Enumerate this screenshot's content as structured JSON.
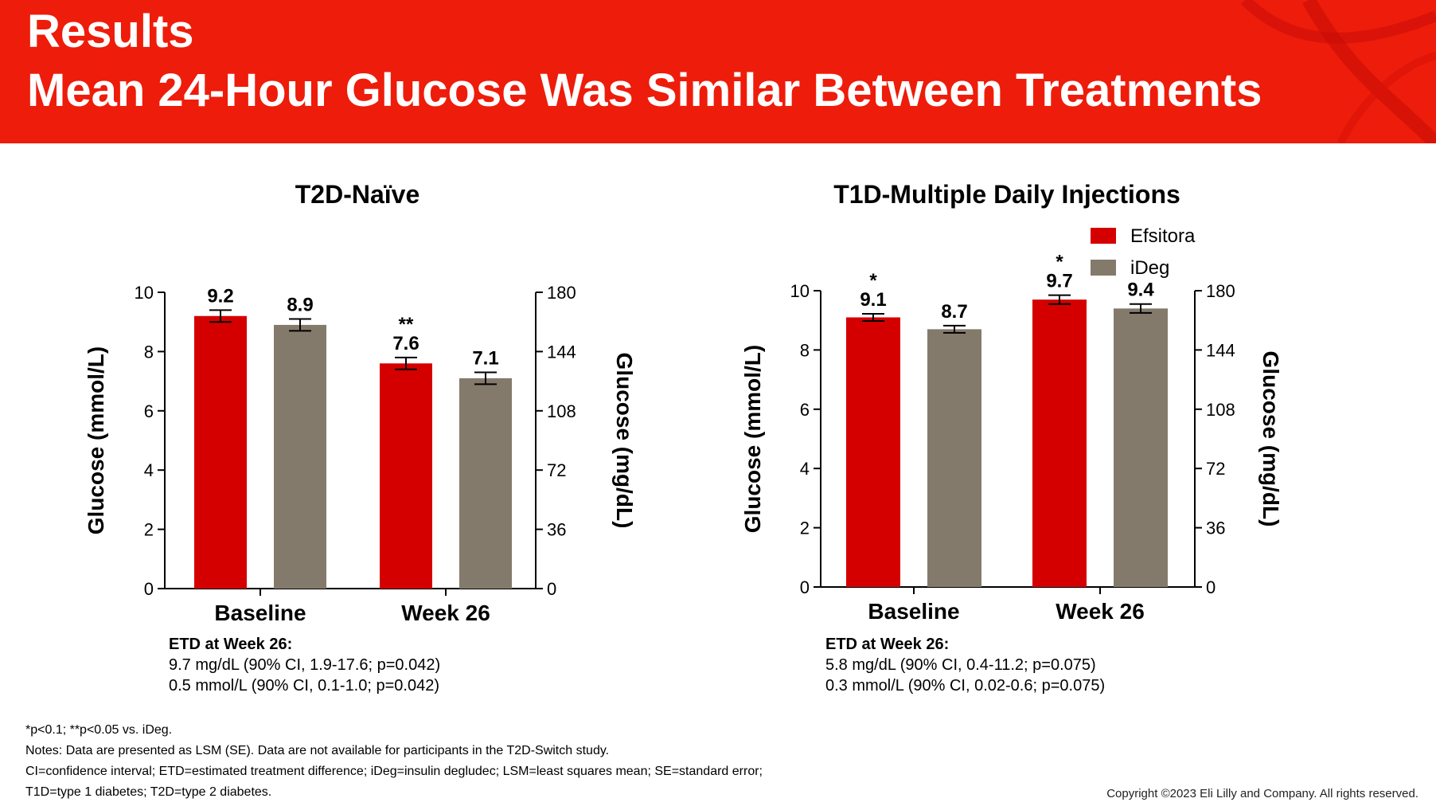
{
  "header": {
    "title_line1": "Results",
    "title_line2": "Mean 24-Hour Glucose Was Similar Between Treatments",
    "background_color": "#ee1c0a"
  },
  "legend": {
    "items": [
      {
        "label": "Efsitora",
        "color": "#d40000"
      },
      {
        "label": "iDeg",
        "color": "#847a6c"
      }
    ]
  },
  "chart_data": [
    {
      "type": "bar",
      "title": "T2D-Naïve",
      "categories": [
        "Baseline",
        "Week 26"
      ],
      "ylabel": "Glucose (mmol/L)",
      "y2label": "Glucose (mg/dL)",
      "ylim": [
        0,
        10
      ],
      "yticks": [
        "0",
        "2",
        "4",
        "6",
        "8",
        "10"
      ],
      "y2ticks": [
        "0",
        "36",
        "72",
        "108",
        "144",
        "180"
      ],
      "series": [
        {
          "name": "Efsitora",
          "color": "#d40000",
          "values": [
            9.2,
            7.6
          ],
          "errors": [
            0.2,
            0.2
          ],
          "labels": [
            "9.2",
            "7.6"
          ],
          "markers": [
            "",
            "**"
          ]
        },
        {
          "name": "iDeg",
          "color": "#847a6c",
          "values": [
            8.9,
            7.1
          ],
          "errors": [
            0.2,
            0.2
          ],
          "labels": [
            "8.9",
            "7.1"
          ],
          "markers": [
            "",
            ""
          ]
        }
      ],
      "etd": {
        "heading": "ETD at Week 26:",
        "line1": "9.7 mg/dL (90% CI, 1.9-17.6; p=0.042)",
        "line2": "0.5 mmol/L (90% CI, 0.1-1.0; p=0.042)"
      }
    },
    {
      "type": "bar",
      "title": "T1D-Multiple Daily Injections",
      "categories": [
        "Baseline",
        "Week 26"
      ],
      "ylabel": "Glucose (mmol/L)",
      "y2label": "Glucose (mg/dL)",
      "ylim": [
        0,
        10
      ],
      "yticks": [
        "0",
        "2",
        "4",
        "6",
        "8",
        "10"
      ],
      "y2ticks": [
        "0",
        "36",
        "72",
        "108",
        "144",
        "180"
      ],
      "series": [
        {
          "name": "Efsitora",
          "color": "#d40000",
          "values": [
            9.1,
            9.7
          ],
          "errors": [
            0.12,
            0.15
          ],
          "labels": [
            "9.1",
            "9.7"
          ],
          "markers": [
            "*",
            "*"
          ]
        },
        {
          "name": "iDeg",
          "color": "#847a6c",
          "values": [
            8.7,
            9.4
          ],
          "errors": [
            0.12,
            0.15
          ],
          "labels": [
            "8.7",
            "9.4"
          ],
          "markers": [
            "",
            ""
          ]
        }
      ],
      "etd": {
        "heading": "ETD at Week 26:",
        "line1": "5.8 mg/dL (90% CI, 0.4-11.2; p=0.075)",
        "line2": "0.3 mmol/L (90% CI, 0.02-0.6; p=0.075)"
      }
    }
  ],
  "footnotes": {
    "line1": "*p<0.1; **p<0.05 vs. iDeg.",
    "line2": "Notes: Data are presented as LSM (SE). Data are not available for participants in the T2D-Switch study.",
    "line3": "CI=confidence interval; ETD=estimated treatment difference; iDeg=insulin degludec; LSM=least squares mean; SE=standard error;",
    "line4": "T1D=type 1 diabetes; T2D=type 2 diabetes."
  },
  "copyright": "Copyright ©2023 Eli Lilly and Company. All rights reserved."
}
